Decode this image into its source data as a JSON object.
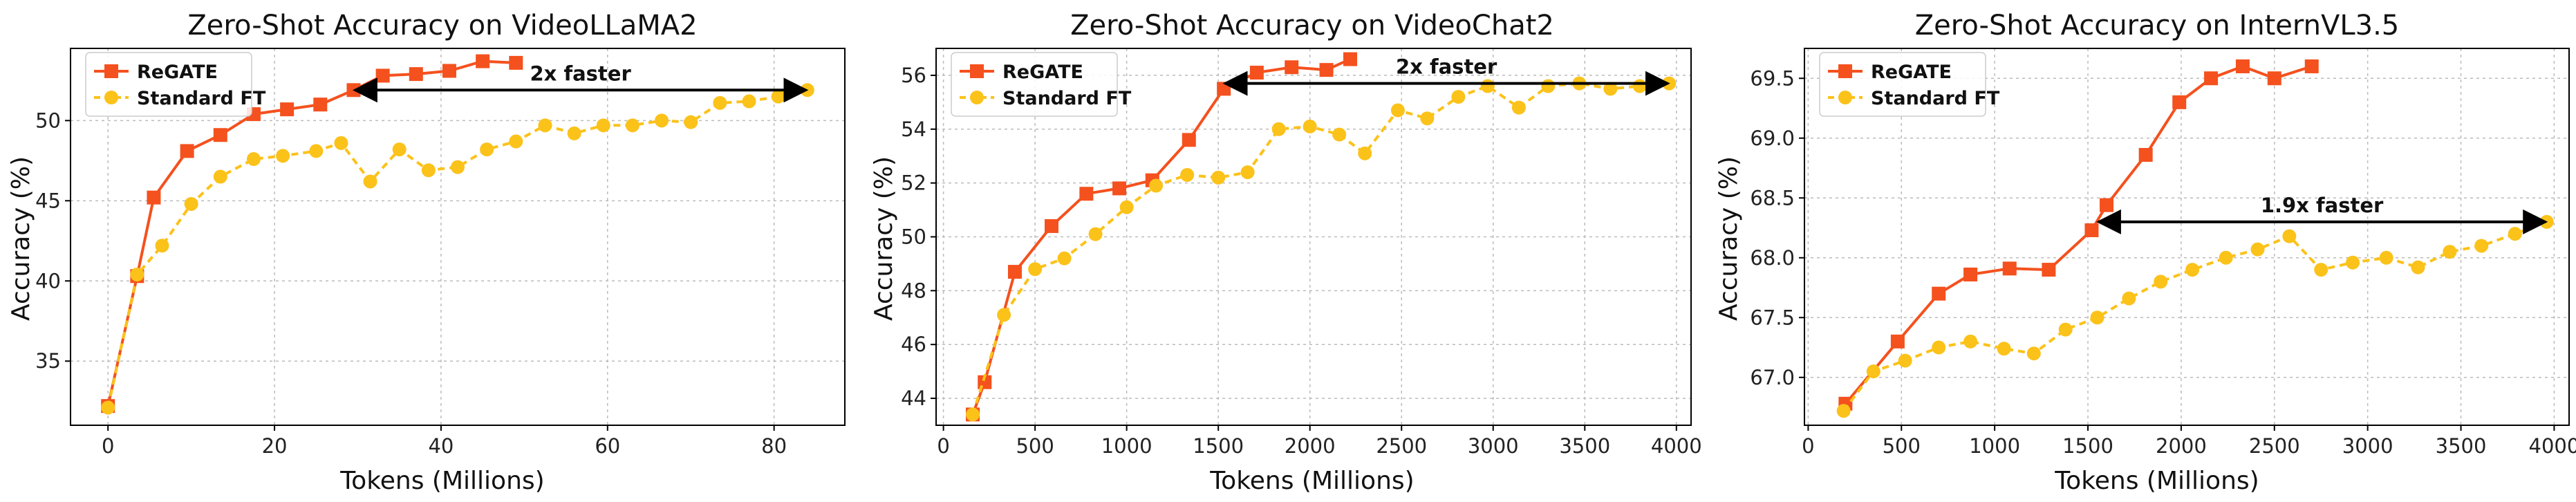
{
  "colors": {
    "regate": "#f4511e",
    "standard": "#fbc21a",
    "arrow": "#000000"
  },
  "chart_data": [
    {
      "type": "line",
      "title": "Zero-Shot Accuracy on VideoLLaMA2",
      "xlabel": "Tokens (Millions)",
      "ylabel": "Accuracy (%)",
      "xlim": [
        -4.5,
        88.5
      ],
      "ylim": [
        31,
        54.5
      ],
      "xticks": [
        0,
        20,
        40,
        60,
        80
      ],
      "yticks": [
        35,
        40,
        45,
        50
      ],
      "grid": true,
      "legend": "top-left",
      "series": [
        {
          "name": "ReGATE",
          "marker": "square",
          "x": [
            0,
            3.5,
            5.5,
            9.5,
            13.5,
            17.5,
            21.5,
            25.5,
            29.5,
            33,
            37,
            41,
            45,
            49
          ],
          "y": [
            32.2,
            40.3,
            45.2,
            48.1,
            49.1,
            50.4,
            50.7,
            51.0,
            51.9,
            52.8,
            52.9,
            53.1,
            53.7,
            53.6
          ]
        },
        {
          "name": "Standard FT",
          "marker": "circle",
          "x": [
            0,
            3.5,
            6.5,
            10,
            13.5,
            17.5,
            21,
            25,
            28,
            31.5,
            35,
            38.5,
            42,
            45.5,
            49,
            52.5,
            56,
            59.5,
            63,
            66.5,
            70,
            73.5,
            77,
            80.5,
            84
          ],
          "y": [
            32.1,
            40.4,
            42.2,
            44.8,
            46.5,
            47.6,
            47.8,
            48.1,
            48.6,
            46.2,
            48.2,
            46.9,
            47.1,
            48.2,
            48.7,
            49.7,
            49.2,
            49.7,
            49.7,
            50.0,
            49.9,
            51.1,
            51.2,
            51.5,
            51.9
          ]
        }
      ],
      "annotation": {
        "text": "2x faster",
        "from": [
          29.5,
          51.9
        ],
        "to": [
          84,
          51.9
        ]
      }
    },
    {
      "type": "line",
      "title": "Zero-Shot Accuracy on VideoChat2",
      "xlabel": "Tokens (Millions)",
      "ylabel": "Accuracy (%)",
      "xlim": [
        -40,
        4080
      ],
      "ylim": [
        43,
        57
      ],
      "xticks": [
        0,
        500,
        1000,
        1500,
        2000,
        2500,
        3000,
        3500,
        4000
      ],
      "yticks": [
        44,
        46,
        48,
        50,
        52,
        54,
        56
      ],
      "grid": true,
      "legend": "top-left",
      "series": [
        {
          "name": "ReGATE",
          "marker": "square",
          "x": [
            160,
            225,
            390,
            590,
            780,
            960,
            1140,
            1340,
            1530,
            1710,
            1900,
            2090,
            2220
          ],
          "y": [
            43.4,
            44.6,
            48.7,
            50.4,
            51.6,
            51.8,
            52.1,
            53.6,
            55.5,
            56.1,
            56.3,
            56.2,
            56.6
          ]
        },
        {
          "name": "Standard FT",
          "marker": "circle",
          "x": [
            160,
            330,
            500,
            660,
            830,
            1000,
            1160,
            1330,
            1500,
            1660,
            1830,
            2000,
            2160,
            2300,
            2480,
            2640,
            2810,
            2970,
            3140,
            3300,
            3470,
            3640,
            3800,
            3960
          ],
          "y": [
            43.4,
            47.1,
            48.8,
            49.2,
            50.1,
            51.1,
            51.9,
            52.3,
            52.2,
            52.4,
            54.0,
            54.1,
            53.8,
            53.1,
            54.7,
            54.4,
            55.2,
            55.6,
            54.8,
            55.6,
            55.7,
            55.5,
            55.6,
            55.7
          ]
        }
      ],
      "annotation": {
        "text": "2x faster",
        "from": [
          1530,
          55.7
        ],
        "to": [
          3960,
          55.7
        ]
      }
    },
    {
      "type": "line",
      "title": "Zero-Shot Accuracy on InternVL3.5",
      "xlabel": "Tokens (Millions)",
      "ylabel": "Accuracy (%)",
      "xlim": [
        -20,
        4080
      ],
      "ylim": [
        66.6,
        69.75
      ],
      "xticks": [
        0,
        500,
        1000,
        1500,
        2000,
        2500,
        3000,
        3500,
        4000
      ],
      "yticks": [
        67.0,
        67.5,
        68.0,
        68.5,
        69.0,
        69.5
      ],
      "grid": true,
      "legend": "top-left",
      "series": [
        {
          "name": "ReGATE",
          "marker": "square",
          "x": [
            200,
            480,
            700,
            870,
            1080,
            1290,
            1520,
            1600,
            1810,
            1990,
            2160,
            2330,
            2500,
            2700
          ],
          "y": [
            66.78,
            67.3,
            67.7,
            67.86,
            67.91,
            67.9,
            68.23,
            68.44,
            68.86,
            69.3,
            69.5,
            69.6,
            69.5,
            69.6
          ]
        },
        {
          "name": "Standard FT",
          "marker": "circle",
          "x": [
            190,
            350,
            520,
            700,
            870,
            1050,
            1210,
            1380,
            1550,
            1720,
            1890,
            2060,
            2240,
            2410,
            2580,
            2750,
            2920,
            3100,
            3270,
            3440,
            3610,
            3790,
            3960
          ],
          "y": [
            66.72,
            67.05,
            67.14,
            67.25,
            67.3,
            67.24,
            67.2,
            67.4,
            67.5,
            67.66,
            67.8,
            67.9,
            68.0,
            68.07,
            68.18,
            67.9,
            67.96,
            68.0,
            67.92,
            68.05,
            68.1,
            68.2,
            68.3
          ]
        }
      ],
      "annotation": {
        "text": "1.9x faster",
        "from": [
          1550,
          68.3
        ],
        "to": [
          3960,
          68.3
        ]
      }
    }
  ]
}
